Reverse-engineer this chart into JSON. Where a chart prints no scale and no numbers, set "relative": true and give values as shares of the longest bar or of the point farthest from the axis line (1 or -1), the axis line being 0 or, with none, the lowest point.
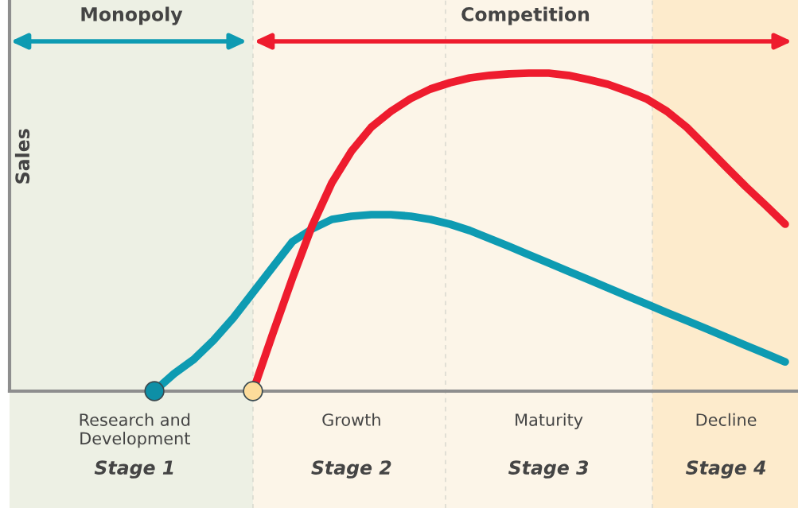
{
  "chart_data": {
    "type": "line",
    "relative": true,
    "ylabel": "Sales",
    "categories": [
      null,
      null,
      null,
      null,
      null,
      null,
      "Research and\nDevelopment",
      null,
      null,
      null,
      null,
      null,
      null,
      null,
      null,
      null,
      null,
      "Growth",
      null,
      null,
      null,
      null,
      null,
      null,
      null,
      null,
      null,
      "Maturity",
      null,
      null,
      null,
      null,
      null,
      null,
      null,
      null,
      "Decline",
      null,
      null,
      null
    ],
    "series": [
      {
        "color": "#0e9bb2",
        "values": [
          null,
          null,
          null,
          null,
          null,
          null,
          null,
          0,
          0.055,
          0.1,
          0.16,
          0.23,
          0.31,
          0.39,
          0.47,
          0.51,
          0.54,
          0.55,
          0.555,
          0.555,
          0.55,
          0.54,
          0.525,
          0.505,
          0.48,
          0.455,
          0.429,
          0.403,
          0.377,
          0.351,
          0.325,
          0.299,
          0.273,
          0.247,
          0.222,
          0.196,
          0.17,
          0.144,
          0.118,
          0.092
        ]
      },
      {
        "color": "#ee1c2e",
        "values": [
          null,
          null,
          null,
          null,
          null,
          null,
          null,
          null,
          null,
          null,
          null,
          null,
          0,
          0.18,
          0.355,
          0.52,
          0.655,
          0.755,
          0.83,
          0.88,
          0.92,
          0.95,
          0.97,
          0.985,
          0.993,
          0.998,
          1,
          1,
          0.993,
          0.98,
          0.965,
          0.943,
          0.918,
          0.88,
          0.83,
          0.768,
          0.705,
          0.643,
          0.585,
          0.525
        ]
      },
      {
        "type": "scatter",
        "color": "#0e8fa6",
        "values": [
          null,
          null,
          null,
          null,
          null,
          null,
          null,
          0,
          null,
          null,
          null,
          null,
          null,
          null,
          null,
          null,
          null,
          null,
          null,
          null,
          null,
          null,
          null,
          null,
          null,
          null,
          null,
          null,
          null,
          null,
          null,
          null,
          null,
          null,
          null,
          null,
          null,
          null,
          null,
          null
        ]
      },
      {
        "type": "scatter",
        "color": "#fddc9b",
        "values": [
          null,
          null,
          null,
          null,
          null,
          null,
          null,
          null,
          null,
          null,
          null,
          null,
          0,
          null,
          null,
          null,
          null,
          null,
          null,
          null,
          null,
          null,
          null,
          null,
          null,
          null,
          null,
          null,
          null,
          null,
          null,
          null,
          null,
          null,
          null,
          null,
          null,
          null,
          null,
          null
        ]
      }
    ],
    "annotations": [
      "Monopoly",
      "Competition",
      "Stage 1",
      "Stage 2",
      "Stage 3",
      "Stage 4"
    ],
    "legend": false
  }
}
